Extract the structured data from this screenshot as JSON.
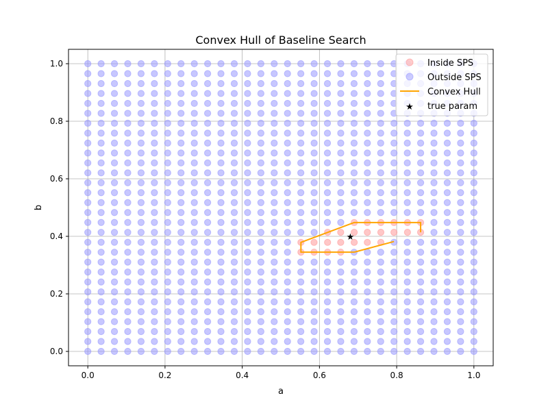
{
  "chart_data": {
    "type": "scatter",
    "title": "Convex Hull of Baseline Search",
    "xlabel": "a",
    "ylabel": "b",
    "xlim": [
      -0.05,
      1.05
    ],
    "ylim": [
      -0.05,
      1.05
    ],
    "xticks": [
      0.0,
      0.2,
      0.4,
      0.6,
      0.8,
      1.0
    ],
    "yticks": [
      0.0,
      0.2,
      0.4,
      0.6,
      0.8,
      1.0
    ],
    "xtick_labels": [
      "0.0",
      "0.2",
      "0.4",
      "0.6",
      "0.8",
      "1.0"
    ],
    "ytick_labels": [
      "0.0",
      "0.2",
      "0.4",
      "0.6",
      "0.8",
      "1.0"
    ],
    "grid": true,
    "legend_position": "top-right",
    "grid_points": {
      "n": 30,
      "min": 0,
      "max": 1
    },
    "series": [
      {
        "name": "Inside SPS",
        "kind": "scatter",
        "color": "#ff9999",
        "points": [
          [
            0.552,
            0.345
          ],
          [
            0.586,
            0.345
          ],
          [
            0.621,
            0.345
          ],
          [
            0.655,
            0.345
          ],
          [
            0.552,
            0.379
          ],
          [
            0.586,
            0.379
          ],
          [
            0.621,
            0.379
          ],
          [
            0.655,
            0.379
          ],
          [
            0.69,
            0.379
          ],
          [
            0.724,
            0.379
          ],
          [
            0.759,
            0.379
          ],
          [
            0.621,
            0.414
          ],
          [
            0.655,
            0.414
          ],
          [
            0.69,
            0.414
          ],
          [
            0.724,
            0.414
          ],
          [
            0.759,
            0.414
          ],
          [
            0.793,
            0.414
          ],
          [
            0.828,
            0.414
          ],
          [
            0.862,
            0.414
          ],
          [
            0.69,
            0.448
          ],
          [
            0.724,
            0.448
          ],
          [
            0.759,
            0.448
          ],
          [
            0.793,
            0.448
          ],
          [
            0.828,
            0.448
          ],
          [
            0.862,
            0.448
          ]
        ]
      },
      {
        "name": "Outside SPS",
        "kind": "scatter",
        "color": "#9999ff"
      },
      {
        "name": "Convex Hull",
        "kind": "line",
        "color": "#ffa500",
        "points": [
          [
            0.69,
            0.345
          ],
          [
            0.552,
            0.345
          ],
          [
            0.552,
            0.379
          ],
          [
            0.69,
            0.448
          ],
          [
            0.862,
            0.448
          ],
          [
            0.862,
            0.414
          ]
        ],
        "extra_segment": [
          [
            0.793,
            0.382
          ],
          [
            0.69,
            0.345
          ]
        ]
      },
      {
        "name": "true param",
        "kind": "marker",
        "color": "#000000",
        "points": [
          [
            0.68,
            0.4
          ]
        ]
      }
    ]
  }
}
